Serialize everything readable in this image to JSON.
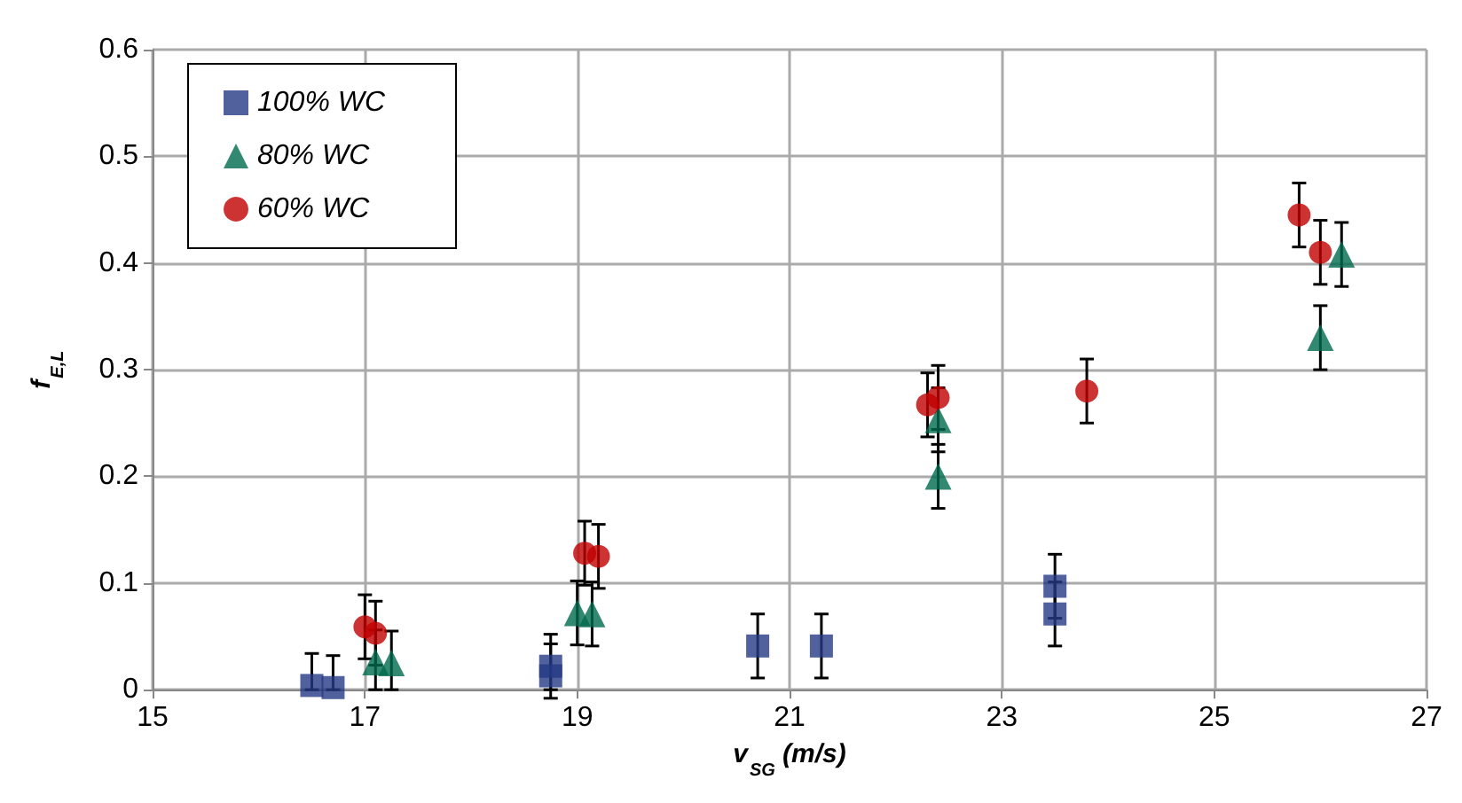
{
  "chart_data": {
    "type": "scatter",
    "xlabel": "v$_{SG}$ (m/s)",
    "ylabel": "f$_{E,L}$",
    "xlim": [
      15,
      27
    ],
    "xticks": [
      15,
      17,
      19,
      21,
      23,
      25,
      27
    ],
    "ylim": [
      0,
      0.6
    ],
    "yticks": [
      0,
      0.1,
      0.2,
      0.3,
      0.4,
      0.5,
      0.6
    ],
    "grid": true,
    "legend": "top left",
    "series": [
      {
        "name": "100% WC",
        "color": "#243a84",
        "marker": "square",
        "x": [
          16.5,
          16.7,
          18.75,
          18.75,
          20.7,
          21.3,
          23.5,
          23.5
        ],
        "values": [
          0.004,
          0.002,
          0.022,
          0.013,
          0.041,
          0.041,
          0.097,
          0.071
        ],
        "errors": [
          [
            0,
            0.034
          ],
          [
            0,
            0.032
          ],
          0.03,
          [
            0,
            0.043
          ],
          0.03,
          0.03,
          0.03,
          0.03
        ]
      },
      {
        "name": "80% WC",
        "color": "#006a4e",
        "marker": "triangle",
        "x": [
          17.1,
          17.25,
          19.0,
          19.14,
          22.4,
          22.4,
          26.0,
          26.2
        ],
        "values": [
          0.026,
          0.025,
          0.072,
          0.071,
          0.2,
          0.253,
          0.33,
          0.408
        ],
        "errors": [
          [
            0,
            0.056
          ],
          [
            0,
            0.055
          ],
          0.03,
          0.03,
          0.03,
          0.03,
          0.03,
          0.03
        ]
      },
      {
        "name": "60% WC",
        "color": "#c00000",
        "marker": "circle",
        "x": [
          17.0,
          17.1,
          19.07,
          19.2,
          22.3,
          22.4,
          23.8,
          25.8,
          26.0
        ],
        "values": [
          0.059,
          0.053,
          0.128,
          0.125,
          0.267,
          0.274,
          0.28,
          0.445,
          0.41
        ],
        "errors": [
          0.03,
          0.03,
          0.03,
          0.03,
          0.03,
          0.03,
          0.03,
          0.03,
          0.03
        ]
      }
    ]
  }
}
